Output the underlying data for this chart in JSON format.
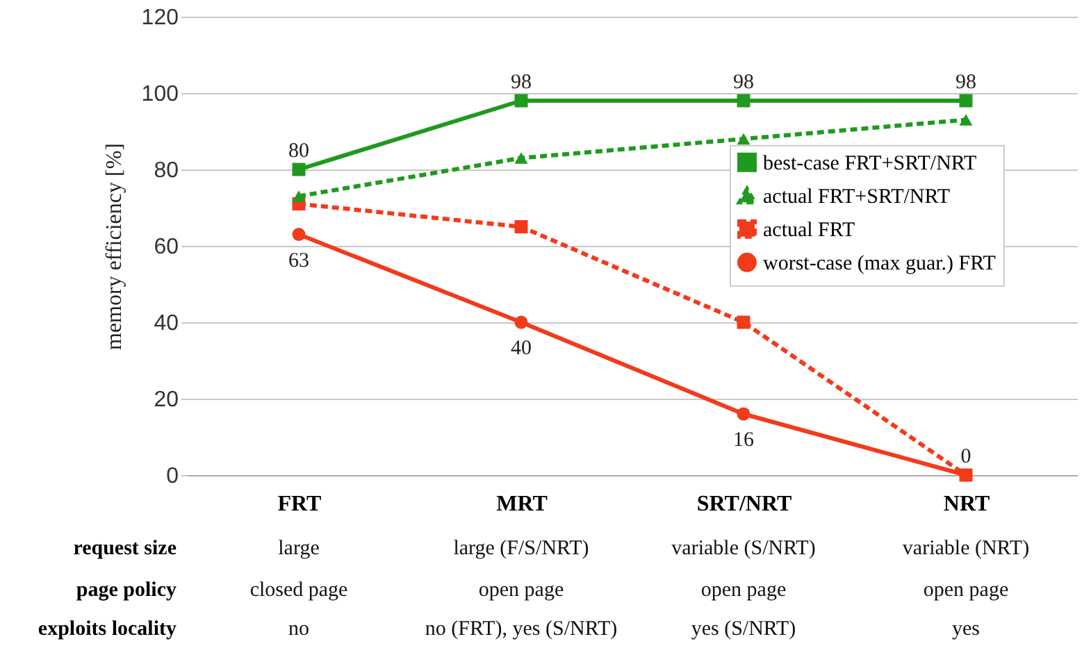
{
  "chart_data": {
    "type": "line",
    "ylabel": "memory efficiency [%]",
    "categories": [
      "FRT",
      "MRT",
      "SRT/NRT",
      "NRT"
    ],
    "ylim": [
      0,
      120
    ],
    "yticks": [
      0,
      20,
      40,
      60,
      80,
      100,
      120
    ],
    "grid": "y",
    "legend": "right",
    "series": [
      {
        "name": "best-case FRT+SRT/NRT",
        "color": "#1f9a1f",
        "marker": "square",
        "line_style": "solid",
        "values": [
          80,
          98,
          98,
          98
        ],
        "value_labels": [
          "80",
          "98",
          "98",
          "98"
        ]
      },
      {
        "name": "actual FRT+SRT/NRT",
        "color": "#1f9a1f",
        "marker": "triangle",
        "line_style": "dashed",
        "values": [
          73,
          83,
          88,
          93
        ]
      },
      {
        "name": "actual FRT",
        "color": "#f23b1a",
        "marker": "square",
        "line_style": "dashed",
        "values": [
          71,
          65,
          40,
          0
        ]
      },
      {
        "name": "worst-case (max guar.) FRT",
        "color": "#f23b1a",
        "marker": "circle",
        "line_style": "solid",
        "values": [
          63,
          40,
          16,
          0
        ],
        "value_labels": [
          "63",
          "40",
          "16",
          "0"
        ]
      }
    ],
    "annotations": [
      "request size",
      "large",
      "large (F/S/NRT)",
      "variable (S/NRT)",
      "variable (NRT)",
      "page policy",
      "closed page",
      "open page",
      "open page",
      "open page",
      "exploits locality",
      "no",
      "no (FRT), yes (S/NRT)",
      "yes (S/NRT)",
      "yes"
    ]
  }
}
